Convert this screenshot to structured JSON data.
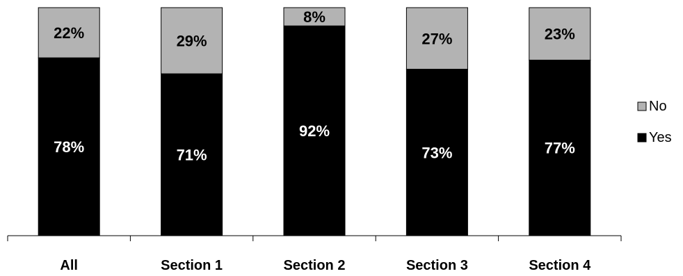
{
  "chart_data": {
    "type": "bar",
    "stacked": true,
    "percent_stacked": true,
    "title": "",
    "xlabel": "",
    "ylabel": "",
    "ylim": [
      0,
      100
    ],
    "grid": false,
    "legend_position": "right",
    "categories": [
      "All",
      "Section 1",
      "Section 2",
      "Section 3",
      "Section 4"
    ],
    "series": [
      {
        "name": "Yes",
        "values": [
          78,
          71,
          92,
          73,
          77
        ],
        "color": "#000000",
        "label_color": "#ffffff"
      },
      {
        "name": "No",
        "values": [
          22,
          29,
          8,
          27,
          23
        ],
        "color": "#b3b3b3",
        "label_color": "#000000"
      }
    ],
    "data_labels": {
      "Yes": [
        "78%",
        "71%",
        "92%",
        "73%",
        "77%"
      ],
      "No": [
        "22%",
        "29%",
        "8%",
        "27%",
        "23%"
      ]
    },
    "legend": [
      {
        "name": "No",
        "color": "#b3b3b3"
      },
      {
        "name": "Yes",
        "color": "#000000"
      }
    ]
  }
}
